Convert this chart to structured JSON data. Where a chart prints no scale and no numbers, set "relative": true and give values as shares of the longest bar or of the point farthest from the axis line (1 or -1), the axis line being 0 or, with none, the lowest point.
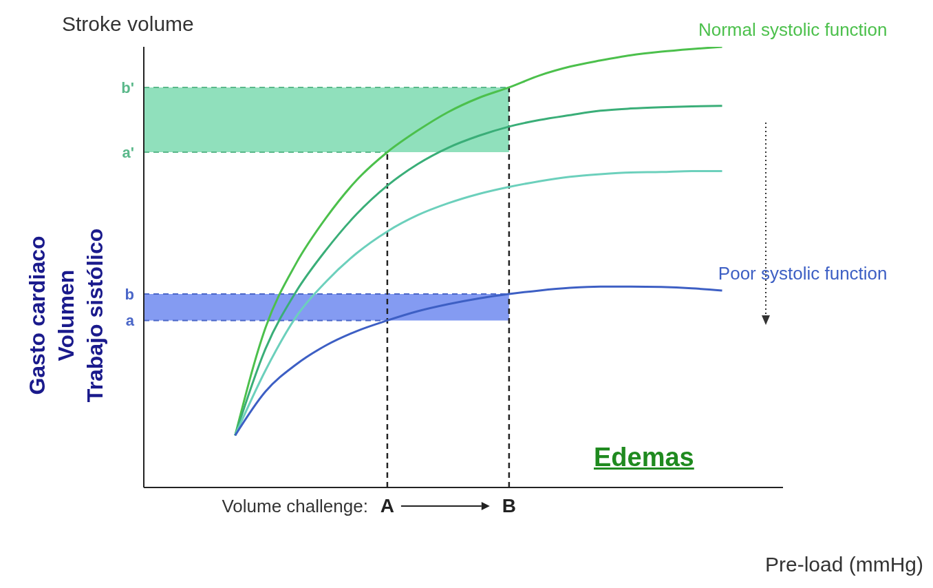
{
  "chart_data": {
    "type": "line",
    "relative": true,
    "ylabel": "Stroke volume",
    "xlabel": "Pre-load (mmHg)",
    "categories": [
      null,
      null,
      null,
      null,
      null,
      null,
      null,
      null,
      "A",
      null,
      null,
      null,
      "B",
      null,
      null,
      null,
      null,
      null,
      null,
      null,
      null,
      null
    ],
    "series": [
      {
        "name": "Normal systolic function",
        "color": "#4cc04c",
        "values": [
          null,
          null,
          null,
          0.118,
          0.363,
          0.508,
          0.613,
          0.698,
          0.761,
          0.81,
          0.852,
          0.884,
          0.908,
          0.935,
          0.955,
          0.969,
          0.981,
          0.989,
          0.995,
          1,
          null,
          null
        ]
      },
      {
        "color": "#3aae78",
        "values": [
          null,
          null,
          null,
          0.118,
          0.315,
          0.444,
          0.54,
          0.621,
          0.685,
          0.734,
          0.771,
          0.798,
          0.819,
          0.834,
          0.845,
          0.855,
          0.86,
          0.863,
          0.865,
          0.866,
          null,
          null
        ]
      },
      {
        "color": "#6cd0bc",
        "values": [
          null,
          null,
          null,
          0.118,
          0.266,
          0.387,
          0.468,
          0.532,
          0.581,
          0.618,
          0.645,
          0.666,
          0.682,
          0.695,
          0.705,
          0.711,
          0.715,
          0.716,
          0.718,
          0.718,
          null,
          null
        ]
      },
      {
        "name": "Poor systolic function",
        "color": "#3d5fc4",
        "values": [
          null,
          null,
          null,
          0.118,
          0.218,
          0.279,
          0.323,
          0.355,
          0.379,
          0.4,
          0.416,
          0.429,
          0.439,
          0.447,
          0.453,
          0.456,
          0.456,
          0.455,
          0.452,
          0.447,
          null,
          null
        ]
      }
    ],
    "bands": [
      {
        "axis": "y",
        "from": 0.761,
        "to": 0.908,
        "color": "#7ddbb0"
      },
      {
        "axis": "y",
        "from": 0.379,
        "to": 0.439,
        "color": "#6e8af0"
      }
    ],
    "ref_lines": [
      {
        "axis": "y",
        "value": 0.761,
        "label": "a'",
        "color": "#5ab88a",
        "line_style": "dashed"
      },
      {
        "axis": "y",
        "value": 0.908,
        "label": "b'",
        "color": "#5ab88a",
        "line_style": "dashed"
      },
      {
        "axis": "y",
        "value": 0.379,
        "label": "a",
        "color": "#4a66c8",
        "line_style": "dashed"
      },
      {
        "axis": "y",
        "value": 0.439,
        "label": "b",
        "color": "#4a66c8",
        "line_style": "dashed"
      },
      {
        "axis": "x",
        "value": "A",
        "color": "#222222",
        "line_style": "dashed"
      },
      {
        "axis": "x",
        "value": "B",
        "color": "#222222",
        "line_style": "dashed"
      }
    ],
    "annotations": [
      "Gasto cardiaco",
      "Volumen",
      "Trabajo sistólico",
      "Edemas",
      "Volume challenge:"
    ],
    "legend": false,
    "grid": false,
    "marker": "none",
    "line_style": "solid"
  }
}
